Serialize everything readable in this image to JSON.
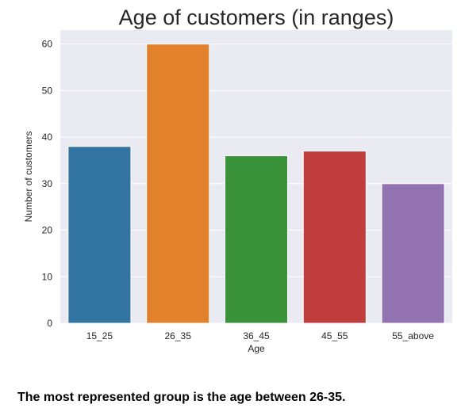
{
  "chart_data": {
    "type": "bar",
    "title": "Age of customers (in ranges)",
    "xlabel": "Age",
    "ylabel": "Number of customers",
    "categories": [
      "15_25",
      "26_35",
      "36_45",
      "45_55",
      "55_above"
    ],
    "values": [
      38,
      60,
      36,
      37,
      30
    ],
    "colors": [
      "#3274a1",
      "#e1812c",
      "#3a923a",
      "#c03d3e",
      "#9372b2"
    ],
    "ylim": [
      0,
      63
    ],
    "yticks": [
      0,
      10,
      20,
      30,
      40,
      50,
      60
    ],
    "grid": true,
    "background": "#eaeaf2"
  },
  "caption": "The most represented group is the age between 26-35."
}
